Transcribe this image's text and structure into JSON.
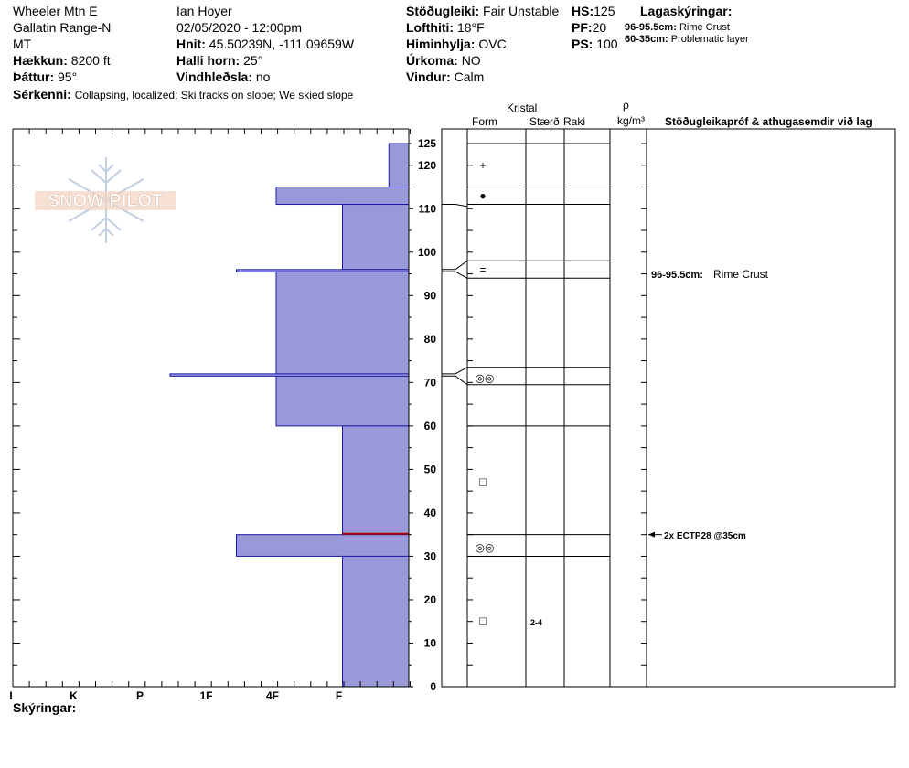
{
  "header": {
    "location": "Wheeler Mtn E",
    "range": "Gallatin Range-N",
    "state": "MT",
    "elevation_label": "Hækkun:",
    "elevation_value": "8200 ft",
    "aspect_label": "Þáttur:",
    "aspect_value": "95°",
    "observer": "Ian Hoyer",
    "datetime": "02/05/2020 - 12:00pm",
    "coords_label": "Hnit:",
    "coords_value": "45.50239N, -111.09659W",
    "slope_label": "Halli horn:",
    "slope_value": "25°",
    "windload_label": "Vindhleðsla:",
    "windload_value": "no",
    "stability_label": "Stöðugleiki:",
    "stability_value": "Fair Unstable",
    "airtemp_label": "Lofthiti:",
    "airtemp_value": "18°F",
    "sky_label": "Himinhylja:",
    "sky_value": "OVC",
    "precip_label": "Úrkoma:",
    "precip_value": "NO",
    "wind_label": "Vindur:",
    "wind_value": "Calm",
    "hs_label": "HS:",
    "hs_value": "125",
    "pf_label": "PF:",
    "pf_value": "20",
    "ps_label": "PS:",
    "ps_value": "100",
    "features_label": "Sérkenni:",
    "features_value": "Collapsing, localized;  Ski tracks on slope;  We skied slope",
    "legend_title": "Lagaskýringar:",
    "legend_items": [
      {
        "range": "96-95.5cm:",
        "desc": "Rime Crust"
      },
      {
        "range": "60-35cm:",
        "desc": "Problematic layer"
      }
    ]
  },
  "columns": {
    "crystal": "Kristal",
    "form": "Form",
    "size": "Stærð",
    "moisture": "Raki",
    "density_symbol": "ρ",
    "density_unit": "kg/m³",
    "tests": "Stöðugleikapróf & athugasemdir við lag"
  },
  "watermark": "SNOW PILOT",
  "footer": {
    "notes_label": "Skýringar:"
  },
  "annotations": {
    "rime_crust_range": "96-95.5cm:",
    "rime_crust_desc": "Rime Crust",
    "test_result": "2x ECTP28 @35cm",
    "size_label": "2-4"
  },
  "colors": {
    "layer_fill": "#9999d9",
    "layer_stroke": "#1a1aa6",
    "problem_line": "#b00000",
    "grid": "#000000"
  },
  "chart_data": {
    "type": "hardness-profile",
    "snow_depth_cm": 125,
    "y_axis": {
      "ylim": [
        0,
        125
      ],
      "ticks": [
        0,
        10,
        20,
        30,
        40,
        50,
        60,
        70,
        80,
        90,
        100,
        110,
        120,
        125
      ]
    },
    "hardness_ticks": [
      "I",
      "K",
      "P",
      "1F",
      "4F",
      "F"
    ],
    "hardness_index": {
      "F": 1,
      "4F": 2,
      "1F": 3,
      "P": 4,
      "K": 5,
      "I": 6
    },
    "layers": [
      {
        "top": 125,
        "bottom": 115,
        "hardness_idx": 0.3
      },
      {
        "top": 115,
        "bottom": 111,
        "hardness_idx": 2
      },
      {
        "top": 111,
        "bottom": 96,
        "hardness_idx": 1
      },
      {
        "top": 96,
        "bottom": 95.5,
        "hardness_idx": 2.6
      },
      {
        "top": 95.5,
        "bottom": 60,
        "hardness_idx": 2
      },
      {
        "top": 72,
        "bottom": 71.5,
        "hardness_idx": 3.6
      },
      {
        "top": 60,
        "bottom": 35,
        "hardness_idx": 1
      },
      {
        "top": 35,
        "bottom": 30,
        "hardness_idx": 2.6
      },
      {
        "top": 30,
        "bottom": 0,
        "hardness_idx": 1
      }
    ],
    "problem_layer_line_cm": 35.2,
    "grain_markers": [
      {
        "cm": 120,
        "symbol": "+"
      },
      {
        "cm": 113,
        "symbol": "●"
      },
      {
        "cm": 96,
        "symbol": "="
      },
      {
        "cm": 71,
        "symbol": "◎◎"
      },
      {
        "cm": 47,
        "symbol": "□"
      },
      {
        "cm": 32,
        "symbol": "◎◎"
      },
      {
        "cm": 15,
        "symbol": "□"
      }
    ],
    "layer_boundaries_cm": [
      125,
      115,
      111,
      98,
      94,
      73.5,
      69.5,
      60,
      35,
      30
    ],
    "test_depth_cm": 35
  }
}
